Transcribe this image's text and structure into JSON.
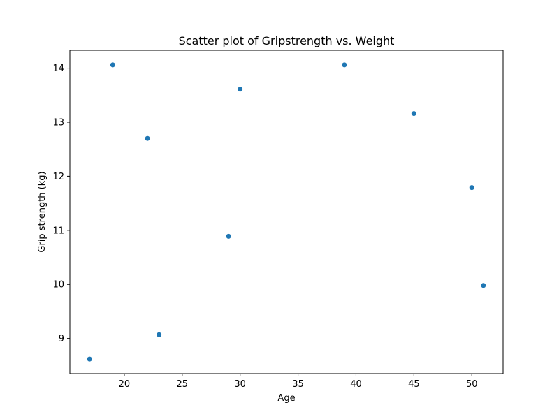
{
  "chart_data": {
    "type": "scatter",
    "title": "Scatter plot of Gripstrength vs. Weight",
    "xlabel": "Age",
    "ylabel": "Grip strength (kg)",
    "xlim": [
      15.3,
      52.7
    ],
    "ylim": [
      8.35,
      14.33
    ],
    "xticks": [
      20,
      25,
      30,
      35,
      40,
      45,
      50
    ],
    "yticks": [
      9,
      10,
      11,
      12,
      13,
      14
    ],
    "grid": false,
    "marker_color": "#1f77b4",
    "points": [
      {
        "x": 17,
        "y": 8.62
      },
      {
        "x": 19,
        "y": 14.06
      },
      {
        "x": 22,
        "y": 12.7
      },
      {
        "x": 23,
        "y": 9.07
      },
      {
        "x": 29,
        "y": 10.89
      },
      {
        "x": 30,
        "y": 13.61
      },
      {
        "x": 39,
        "y": 14.06
      },
      {
        "x": 45,
        "y": 13.16
      },
      {
        "x": 50,
        "y": 11.79
      },
      {
        "x": 51,
        "y": 9.98
      }
    ]
  }
}
